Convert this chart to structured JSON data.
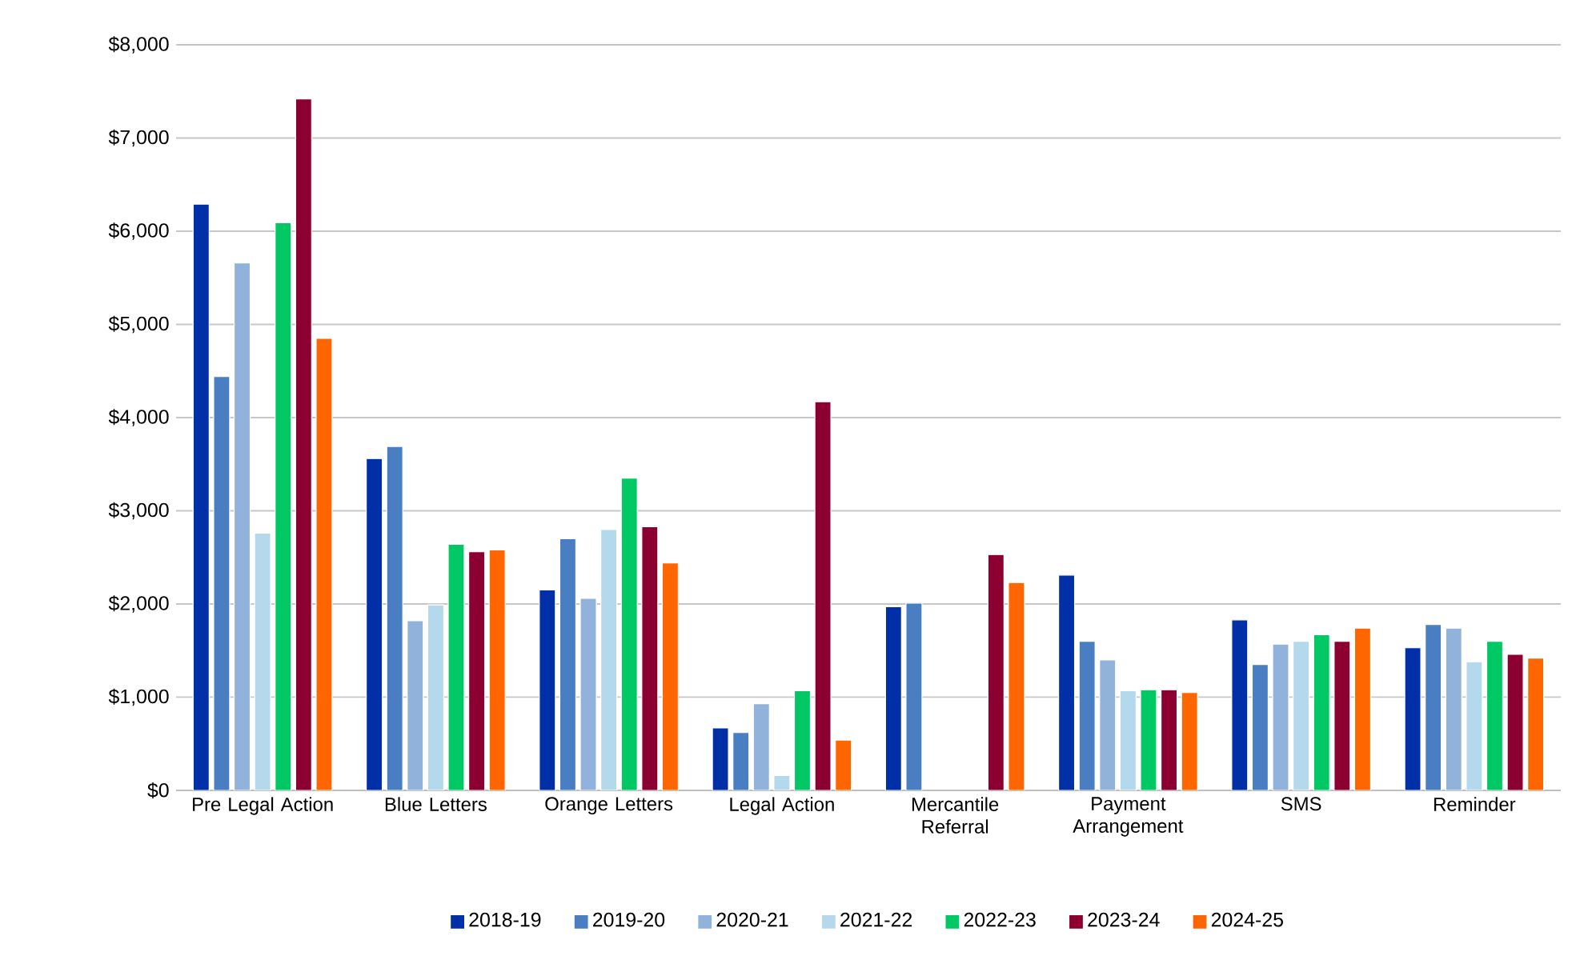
{
  "chart_data": {
    "type": "bar",
    "categories": [
      "Pre Legal Action",
      "Blue Letters",
      "Orange Letters",
      "Legal Action",
      "Mercantile Referral",
      "Payment Arrangement",
      "SMS",
      "Reminder"
    ],
    "series": [
      {
        "name": "2018-19",
        "color": "#002fa7",
        "values": [
          6290,
          3560,
          2150,
          670,
          1970,
          2310,
          1830,
          1530
        ]
      },
      {
        "name": "2019-20",
        "color": "#4a7ec2",
        "values": [
          4440,
          3690,
          2700,
          620,
          2010,
          1600,
          1350,
          1780
        ]
      },
      {
        "name": "2020-21",
        "color": "#91b3db",
        "values": [
          5660,
          1820,
          2060,
          930,
          null,
          1400,
          1570,
          1740
        ]
      },
      {
        "name": "2021-22",
        "color": "#b4d8ec",
        "values": [
          2760,
          1990,
          2800,
          160,
          null,
          1070,
          1600,
          1380
        ]
      },
      {
        "name": "2022-23",
        "color": "#00c864",
        "values": [
          6090,
          2640,
          3350,
          1070,
          null,
          1080,
          1670,
          1600
        ]
      },
      {
        "name": "2023-24",
        "color": "#8b0030",
        "values": [
          7420,
          2560,
          2830,
          4170,
          2530,
          1080,
          1600,
          1460
        ]
      },
      {
        "name": "2024-25",
        "color": "#ff6600",
        "values": [
          4850,
          2580,
          2440,
          540,
          2230,
          1050,
          1740,
          1420
        ]
      }
    ],
    "ylim": [
      0,
      8000
    ],
    "yticks": [
      {
        "value": 0,
        "label": "$0"
      },
      {
        "value": 1000,
        "label": "$1,000"
      },
      {
        "value": 2000,
        "label": "$2,000"
      },
      {
        "value": 3000,
        "label": "$3,000"
      },
      {
        "value": 4000,
        "label": "$4,000"
      },
      {
        "value": 5000,
        "label": "$5,000"
      },
      {
        "value": 6000,
        "label": "$6,000"
      },
      {
        "value": 7000,
        "label": "$7,000"
      },
      {
        "value": 8000,
        "label": "$8,000"
      }
    ],
    "grid": "y",
    "legend": "bottom"
  }
}
